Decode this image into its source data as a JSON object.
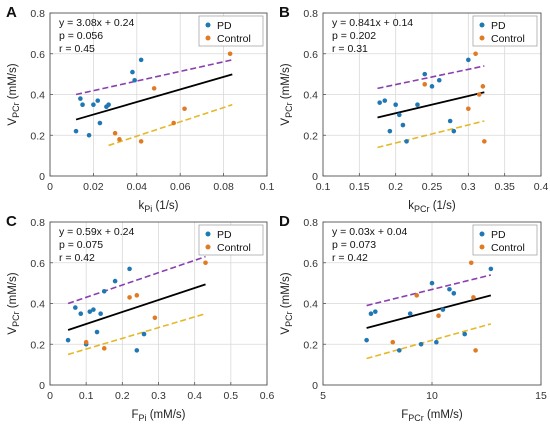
{
  "colors": {
    "pd": "#1f77b4",
    "control": "#e07b24",
    "black_fit": "#000000",
    "pd_dashed": "#8a3fb0",
    "control_dashed": "#e5b82a",
    "axes": "#555555",
    "grid": "#d9d9d9"
  },
  "chart_data": [
    {
      "panel": "A",
      "type": "scatter",
      "xlabel_main": "k",
      "xlabel_sub": "Pi",
      "xlabel_unit": " (1/s)",
      "ylabel_main": "V",
      "ylabel_sub": "PCr",
      "ylabel_unit": " (mM/s)",
      "xlim": [
        0,
        0.1
      ],
      "ylim": [
        0,
        0.8
      ],
      "xticks": [
        0,
        0.02,
        0.04,
        0.06,
        0.08,
        0.1
      ],
      "xtick_labels": [
        "0",
        "0.02",
        "0.04",
        "0.06",
        "0.08",
        "0.1"
      ],
      "yticks": [
        0,
        0.2,
        0.4,
        0.6,
        0.8
      ],
      "ytick_labels": [
        "0",
        "0.2",
        "0.4",
        "0.6",
        "0.8"
      ],
      "grid": true,
      "legend_position": "top-right",
      "stats": [
        "y = 3.08x + 0.24",
        "p = 0.056",
        "r = 0.45"
      ],
      "series": [
        {
          "name": "PD",
          "x": [
            0.012,
            0.014,
            0.015,
            0.018,
            0.02,
            0.022,
            0.023,
            0.026,
            0.027,
            0.038,
            0.039,
            0.042
          ],
          "y": [
            0.22,
            0.38,
            0.35,
            0.2,
            0.35,
            0.37,
            0.26,
            0.34,
            0.35,
            0.51,
            0.47,
            0.57
          ]
        },
        {
          "name": "Control",
          "x": [
            0.03,
            0.032,
            0.042,
            0.048,
            0.057,
            0.062,
            0.083
          ],
          "y": [
            0.21,
            0.18,
            0.17,
            0.43,
            0.26,
            0.33,
            0.6
          ]
        }
      ],
      "fit_line": {
        "x": [
          0.012,
          0.084
        ],
        "y": [
          0.277,
          0.499
        ]
      },
      "pd_fit": {
        "x": [
          0.012,
          0.084
        ],
        "y": [
          0.4,
          0.57
        ]
      },
      "control_fit": {
        "x": [
          0.027,
          0.084
        ],
        "y": [
          0.15,
          0.35
        ]
      }
    },
    {
      "panel": "B",
      "type": "scatter",
      "xlabel_main": "k",
      "xlabel_sub": "PCr",
      "xlabel_unit": " (1/s)",
      "ylabel_main": "V",
      "ylabel_sub": "PCr",
      "ylabel_unit": " (mM/s)",
      "xlim": [
        0.1,
        0.4
      ],
      "ylim": [
        0,
        0.8
      ],
      "xticks": [
        0.1,
        0.15,
        0.2,
        0.25,
        0.3,
        0.35,
        0.4
      ],
      "xtick_labels": [
        "0.1",
        "0.15",
        "0.2",
        "0.25",
        "0.3",
        "0.35",
        "0.4"
      ],
      "yticks": [
        0,
        0.2,
        0.4,
        0.6,
        0.8
      ],
      "ytick_labels": [
        "0",
        "0.2",
        "0.4",
        "0.6",
        "0.8"
      ],
      "grid": true,
      "legend_position": "top-right",
      "stats": [
        "y = 0.841x + 0.14",
        "p = 0.202",
        "r = 0.31"
      ],
      "series": [
        {
          "name": "PD",
          "x": [
            0.178,
            0.185,
            0.192,
            0.2,
            0.205,
            0.21,
            0.215,
            0.23,
            0.24,
            0.25,
            0.26,
            0.275,
            0.28,
            0.3
          ],
          "y": [
            0.36,
            0.37,
            0.22,
            0.35,
            0.3,
            0.25,
            0.17,
            0.35,
            0.5,
            0.44,
            0.47,
            0.27,
            0.22,
            0.57
          ]
        },
        {
          "name": "Control",
          "x": [
            0.24,
            0.3,
            0.31,
            0.315,
            0.32,
            0.322
          ],
          "y": [
            0.45,
            0.33,
            0.6,
            0.4,
            0.44,
            0.17
          ]
        }
      ],
      "fit_line": {
        "x": [
          0.175,
          0.322
        ],
        "y": [
          0.287,
          0.411
        ]
      },
      "pd_fit": {
        "x": [
          0.175,
          0.322
        ],
        "y": [
          0.43,
          0.54
        ]
      },
      "control_fit": {
        "x": [
          0.175,
          0.322
        ],
        "y": [
          0.14,
          0.27
        ]
      }
    },
    {
      "panel": "C",
      "type": "scatter",
      "xlabel_main": "F",
      "xlabel_sub": "Pi",
      "xlabel_unit": " (mM/s)",
      "ylabel_main": "V",
      "ylabel_sub": "PCr",
      "ylabel_unit": " (mM/s)",
      "xlim": [
        0,
        0.6
      ],
      "ylim": [
        0,
        0.8
      ],
      "xticks": [
        0,
        0.1,
        0.2,
        0.3,
        0.4,
        0.5,
        0.6
      ],
      "xtick_labels": [
        "0",
        "0.1",
        "0.2",
        "0.3",
        "0.4",
        "0.5",
        "0.6"
      ],
      "yticks": [
        0,
        0.2,
        0.4,
        0.6,
        0.8
      ],
      "ytick_labels": [
        "0",
        "0.2",
        "0.4",
        "0.6",
        "0.8"
      ],
      "grid": true,
      "legend_position": "top-right",
      "stats": [
        "y = 0.59x + 0.24",
        "p = 0.075",
        "r = 0.42"
      ],
      "series": [
        {
          "name": "PD",
          "x": [
            0.05,
            0.07,
            0.085,
            0.1,
            0.11,
            0.12,
            0.13,
            0.14,
            0.15,
            0.18,
            0.22,
            0.24,
            0.26
          ],
          "y": [
            0.22,
            0.38,
            0.35,
            0.2,
            0.36,
            0.37,
            0.26,
            0.35,
            0.46,
            0.51,
            0.57,
            0.17,
            0.25
          ]
        },
        {
          "name": "Control",
          "x": [
            0.1,
            0.15,
            0.22,
            0.24,
            0.29,
            0.43
          ],
          "y": [
            0.21,
            0.18,
            0.43,
            0.44,
            0.33,
            0.6
          ]
        }
      ],
      "fit_line": {
        "x": [
          0.05,
          0.43
        ],
        "y": [
          0.27,
          0.494
        ]
      },
      "pd_fit": {
        "x": [
          0.05,
          0.43
        ],
        "y": [
          0.4,
          0.63
        ]
      },
      "control_fit": {
        "x": [
          0.05,
          0.43
        ],
        "y": [
          0.15,
          0.35
        ]
      }
    },
    {
      "panel": "D",
      "type": "scatter",
      "xlabel_main": "F",
      "xlabel_sub": "PCr",
      "xlabel_unit": " (mM/s)",
      "ylabel_main": "V",
      "ylabel_sub": "PCr",
      "ylabel_unit": " (mM/s)",
      "xlim": [
        5,
        15
      ],
      "ylim": [
        0,
        0.8
      ],
      "xticks": [
        5,
        10,
        15
      ],
      "xtick_labels": [
        "5",
        "10",
        "15"
      ],
      "yticks": [
        0,
        0.2,
        0.4,
        0.6,
        0.8
      ],
      "ytick_labels": [
        "0",
        "0.2",
        "0.4",
        "0.6",
        "0.8"
      ],
      "grid": true,
      "legend_position": "top-right",
      "stats": [
        "y = 0.03x + 0.04",
        "p = 0.073",
        "r = 0.42"
      ],
      "series": [
        {
          "name": "PD",
          "x": [
            7.0,
            7.2,
            7.4,
            8.5,
            9.0,
            9.5,
            10.0,
            10.2,
            10.5,
            10.8,
            11.0,
            11.5,
            12.7
          ],
          "y": [
            0.22,
            0.35,
            0.36,
            0.17,
            0.35,
            0.2,
            0.5,
            0.21,
            0.37,
            0.47,
            0.45,
            0.25,
            0.57
          ]
        },
        {
          "name": "Control",
          "x": [
            8.2,
            9.3,
            10.3,
            11.8,
            11.9,
            12.0
          ],
          "y": [
            0.21,
            0.44,
            0.34,
            0.6,
            0.43,
            0.17
          ]
        }
      ],
      "fit_line": {
        "x": [
          7.0,
          12.7
        ],
        "y": [
          0.28,
          0.44
        ]
      },
      "pd_fit": {
        "x": [
          7.0,
          12.7
        ],
        "y": [
          0.39,
          0.54
        ]
      },
      "control_fit": {
        "x": [
          7.0,
          12.7
        ],
        "y": [
          0.13,
          0.3
        ]
      }
    }
  ]
}
